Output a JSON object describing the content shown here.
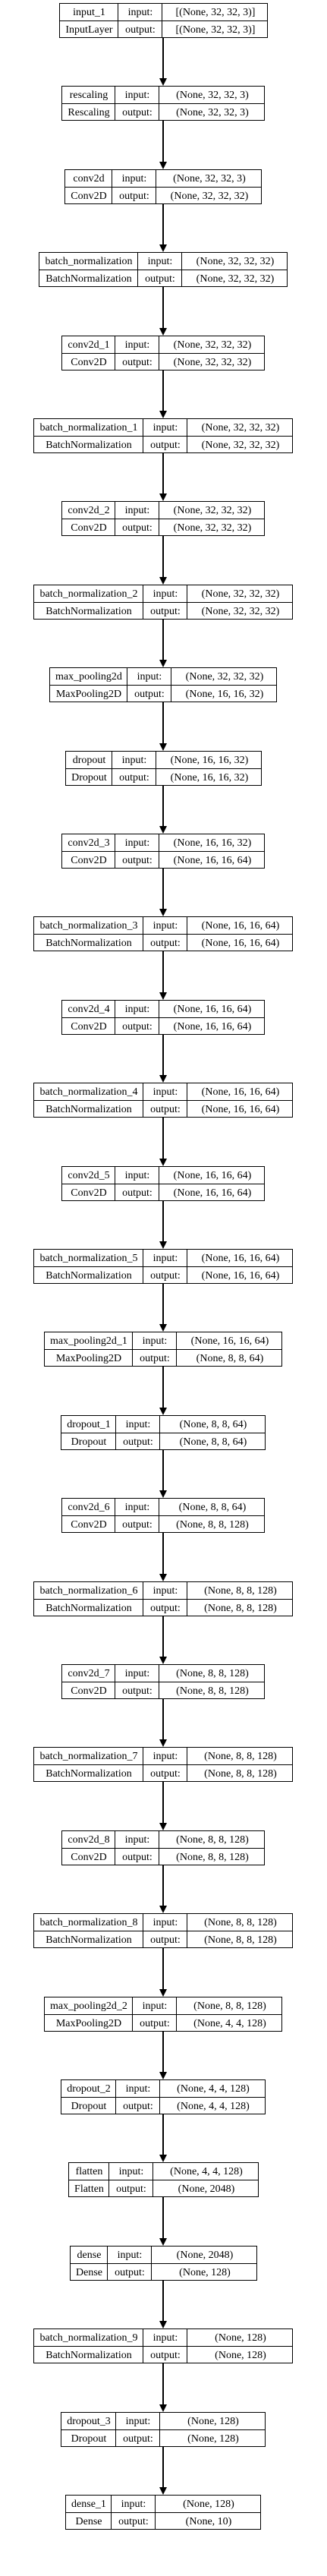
{
  "diagram": {
    "io_labels": {
      "input": "input:",
      "output": "output:"
    },
    "layers": [
      {
        "name": "input_1",
        "type": "InputLayer",
        "input": "[(None, 32, 32, 3)]",
        "output": "[(None, 32, 32, 3)]"
      },
      {
        "name": "rescaling",
        "type": "Rescaling",
        "input": "(None, 32, 32, 3)",
        "output": "(None, 32, 32, 3)"
      },
      {
        "name": "conv2d",
        "type": "Conv2D",
        "input": "(None, 32, 32, 3)",
        "output": "(None, 32, 32, 32)"
      },
      {
        "name": "batch_normalization",
        "type": "BatchNormalization",
        "input": "(None, 32, 32, 32)",
        "output": "(None, 32, 32, 32)"
      },
      {
        "name": "conv2d_1",
        "type": "Conv2D",
        "input": "(None, 32, 32, 32)",
        "output": "(None, 32, 32, 32)"
      },
      {
        "name": "batch_normalization_1",
        "type": "BatchNormalization",
        "input": "(None, 32, 32, 32)",
        "output": "(None, 32, 32, 32)"
      },
      {
        "name": "conv2d_2",
        "type": "Conv2D",
        "input": "(None, 32, 32, 32)",
        "output": "(None, 32, 32, 32)"
      },
      {
        "name": "batch_normalization_2",
        "type": "BatchNormalization",
        "input": "(None, 32, 32, 32)",
        "output": "(None, 32, 32, 32)"
      },
      {
        "name": "max_pooling2d",
        "type": "MaxPooling2D",
        "input": "(None, 32, 32, 32)",
        "output": "(None, 16, 16, 32)"
      },
      {
        "name": "dropout",
        "type": "Dropout",
        "input": "(None, 16, 16, 32)",
        "output": "(None, 16, 16, 32)"
      },
      {
        "name": "conv2d_3",
        "type": "Conv2D",
        "input": "(None, 16, 16, 32)",
        "output": "(None, 16, 16, 64)"
      },
      {
        "name": "batch_normalization_3",
        "type": "BatchNormalization",
        "input": "(None, 16, 16, 64)",
        "output": "(None, 16, 16, 64)"
      },
      {
        "name": "conv2d_4",
        "type": "Conv2D",
        "input": "(None, 16, 16, 64)",
        "output": "(None, 16, 16, 64)"
      },
      {
        "name": "batch_normalization_4",
        "type": "BatchNormalization",
        "input": "(None, 16, 16, 64)",
        "output": "(None, 16, 16, 64)"
      },
      {
        "name": "conv2d_5",
        "type": "Conv2D",
        "input": "(None, 16, 16, 64)",
        "output": "(None, 16, 16, 64)"
      },
      {
        "name": "batch_normalization_5",
        "type": "BatchNormalization",
        "input": "(None, 16, 16, 64)",
        "output": "(None, 16, 16, 64)"
      },
      {
        "name": "max_pooling2d_1",
        "type": "MaxPooling2D",
        "input": "(None, 16, 16, 64)",
        "output": "(None, 8, 8, 64)"
      },
      {
        "name": "dropout_1",
        "type": "Dropout",
        "input": "(None, 8, 8, 64)",
        "output": "(None, 8, 8, 64)"
      },
      {
        "name": "conv2d_6",
        "type": "Conv2D",
        "input": "(None, 8, 8, 64)",
        "output": "(None, 8, 8, 128)"
      },
      {
        "name": "batch_normalization_6",
        "type": "BatchNormalization",
        "input": "(None, 8, 8, 128)",
        "output": "(None, 8, 8, 128)"
      },
      {
        "name": "conv2d_7",
        "type": "Conv2D",
        "input": "(None, 8, 8, 128)",
        "output": "(None, 8, 8, 128)"
      },
      {
        "name": "batch_normalization_7",
        "type": "BatchNormalization",
        "input": "(None, 8, 8, 128)",
        "output": "(None, 8, 8, 128)"
      },
      {
        "name": "conv2d_8",
        "type": "Conv2D",
        "input": "(None, 8, 8, 128)",
        "output": "(None, 8, 8, 128)"
      },
      {
        "name": "batch_normalization_8",
        "type": "BatchNormalization",
        "input": "(None, 8, 8, 128)",
        "output": "(None, 8, 8, 128)"
      },
      {
        "name": "max_pooling2d_2",
        "type": "MaxPooling2D",
        "input": "(None, 8, 8, 128)",
        "output": "(None, 4, 4, 128)"
      },
      {
        "name": "dropout_2",
        "type": "Dropout",
        "input": "(None, 4, 4, 128)",
        "output": "(None, 4, 4, 128)"
      },
      {
        "name": "flatten",
        "type": "Flatten",
        "input": "(None, 4, 4, 128)",
        "output": "(None, 2048)"
      },
      {
        "name": "dense",
        "type": "Dense",
        "input": "(None, 2048)",
        "output": "(None, 128)"
      },
      {
        "name": "batch_normalization_9",
        "type": "BatchNormalization",
        "input": "(None, 128)",
        "output": "(None, 128)"
      },
      {
        "name": "dropout_3",
        "type": "Dropout",
        "input": "(None, 128)",
        "output": "(None, 128)"
      },
      {
        "name": "dense_1",
        "type": "Dense",
        "input": "(None, 128)",
        "output": "(None, 10)"
      }
    ]
  }
}
